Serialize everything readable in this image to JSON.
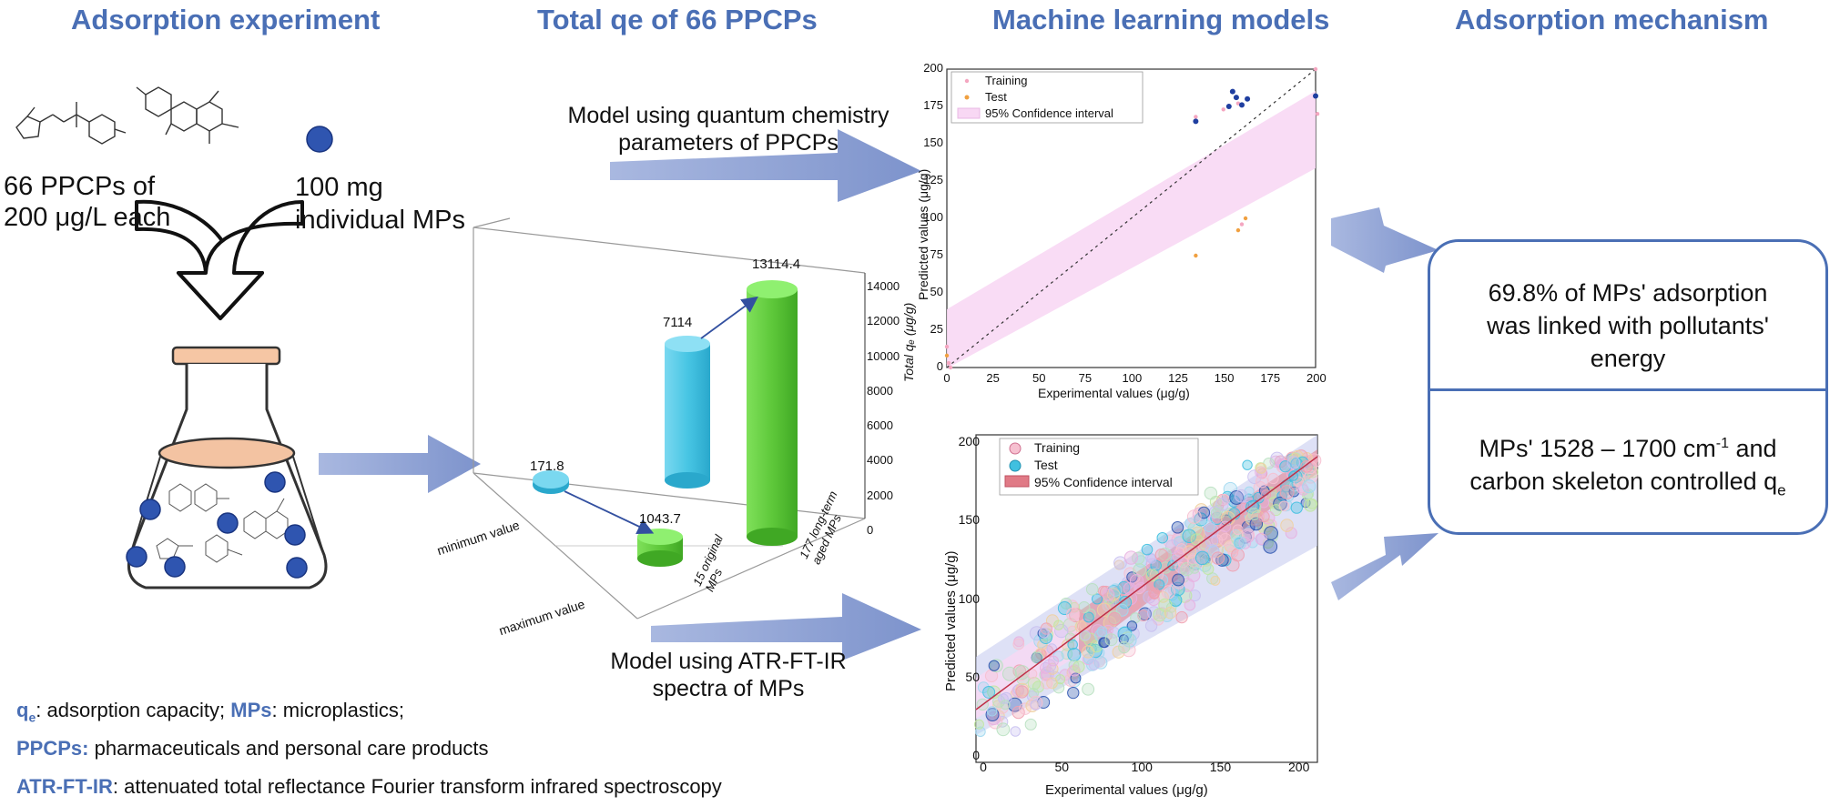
{
  "headers": {
    "col1": "Adsorption experiment",
    "col2": "Total qe of 66 PPCPs",
    "col3": "Machine learning models",
    "col4": "Adsorption mechanism"
  },
  "experiment": {
    "ppcp_line1": "66 PPCPs of",
    "ppcp_line2": "200 μg/L each",
    "mp_line1": "100 mg",
    "mp_line2": "individual MPs"
  },
  "arrows": {
    "model_qc_line1": "Model using quantum chemistry",
    "model_qc_line2": "parameters of PPCPs",
    "model_ir_line1": "Model using ATR-FT-IR",
    "model_ir_line2": "spectra of MPs"
  },
  "bar3d": {
    "z_ticks": [
      "0",
      "2000",
      "4000",
      "6000",
      "8000",
      "10000",
      "12000",
      "14000"
    ],
    "z_label": "Total qₑ (μg/g)",
    "y_cat_1": "minimum value",
    "y_cat_2": "maximum value",
    "x_cat_1": "15 original MPs",
    "x_cat_2": "177 long-term aged MPs",
    "label_min_orig": "171.8",
    "label_min_aged": "1043.7",
    "label_max_orig": "7114",
    "label_max_aged": "13114.4"
  },
  "chart_data": [
    {
      "type": "scatter",
      "xlabel": "Experimental values (μg/g)",
      "ylabel": "Predicted values (μg/g)",
      "xlim": [
        0,
        200
      ],
      "ylim": [
        0,
        200
      ],
      "x_ticks": [
        "0",
        "25",
        "50",
        "75",
        "100",
        "125",
        "150",
        "175",
        "200"
      ],
      "y_ticks": [
        "0",
        "25",
        "50",
        "75",
        "100",
        "125",
        "150",
        "175",
        "200"
      ],
      "legend": [
        "Training",
        "Test",
        "95% Confidence interval"
      ],
      "legend_position": "top-left",
      "series": [
        {
          "name": "Training",
          "color": "#f4a6c0",
          "points": [
            [
              0,
              14
            ],
            [
              1,
              3
            ],
            [
              2,
              0
            ],
            [
              135,
              168
            ],
            [
              150,
              173
            ],
            [
              158,
              177
            ],
            [
              160,
              176
            ],
            [
              200,
              200
            ],
            [
              201,
              170
            ],
            [
              160,
              96
            ]
          ]
        },
        {
          "name": "Test",
          "color": "#f0a040",
          "points": [
            [
              0,
              8
            ],
            [
              135,
              75
            ],
            [
              158,
              92
            ],
            [
              162,
              100
            ]
          ]
        },
        {
          "name": "Training (blue)",
          "color": "#1f3fa0",
          "points": [
            [
              135,
              165
            ],
            [
              153,
              175
            ],
            [
              155,
              185
            ],
            [
              157,
              181
            ],
            [
              160,
              176
            ],
            [
              163,
              180
            ],
            [
              200,
              182
            ]
          ]
        }
      ]
    },
    {
      "type": "scatter",
      "xlabel": "Experimental values (μg/g)",
      "ylabel": "Predicted values (μg/g)",
      "xlim": [
        0,
        200
      ],
      "ylim": [
        0,
        200
      ],
      "x_ticks": [
        "0",
        "50",
        "100",
        "150",
        "200"
      ],
      "y_ticks": [
        "0",
        "50",
        "100",
        "150",
        "200"
      ],
      "legend": [
        "Training",
        "Test",
        "95% Confidence interval"
      ],
      "legend_position": "top-left",
      "fit": {
        "intercept": 25,
        "slope": 0.85
      }
    }
  ],
  "mechanism": {
    "box1_line1": "69.8% of MPs' adsorption",
    "box1_line2": "was linked with pollutants'",
    "box1_line3": "energy",
    "box2_line1_a": "MPs' 1528 – 1700 cm",
    "box2_line1_sup": "-1",
    "box2_line1_b": " and",
    "box2_line2_a": "carbon skeleton controlled q",
    "box2_line2_sub": "e"
  },
  "footnotes": {
    "qe_key": "q",
    "qe_sub": "e",
    "qe_text": ": adsorption capacity; ",
    "mps_key": "MPs",
    "mps_text": ": microplastics;",
    "ppcps_key": "PPCPs:",
    "ppcps_text": " pharmaceuticals and personal care products",
    "atr_key": "ATR-FT-IR",
    "atr_text": ": attenuated total reflectance Fourier transform infrared spectroscopy"
  },
  "colors": {
    "header": "#4a6fb5",
    "arrow": "#8fa4d4",
    "cyl_cyan": "#48c6e4",
    "cyl_green": "#5ec83a",
    "ci_pink": "#f8d8f4",
    "ci_red": "#e07a86",
    "ci_blue": "#c8cdf0",
    "particle": "#2f55b0"
  }
}
